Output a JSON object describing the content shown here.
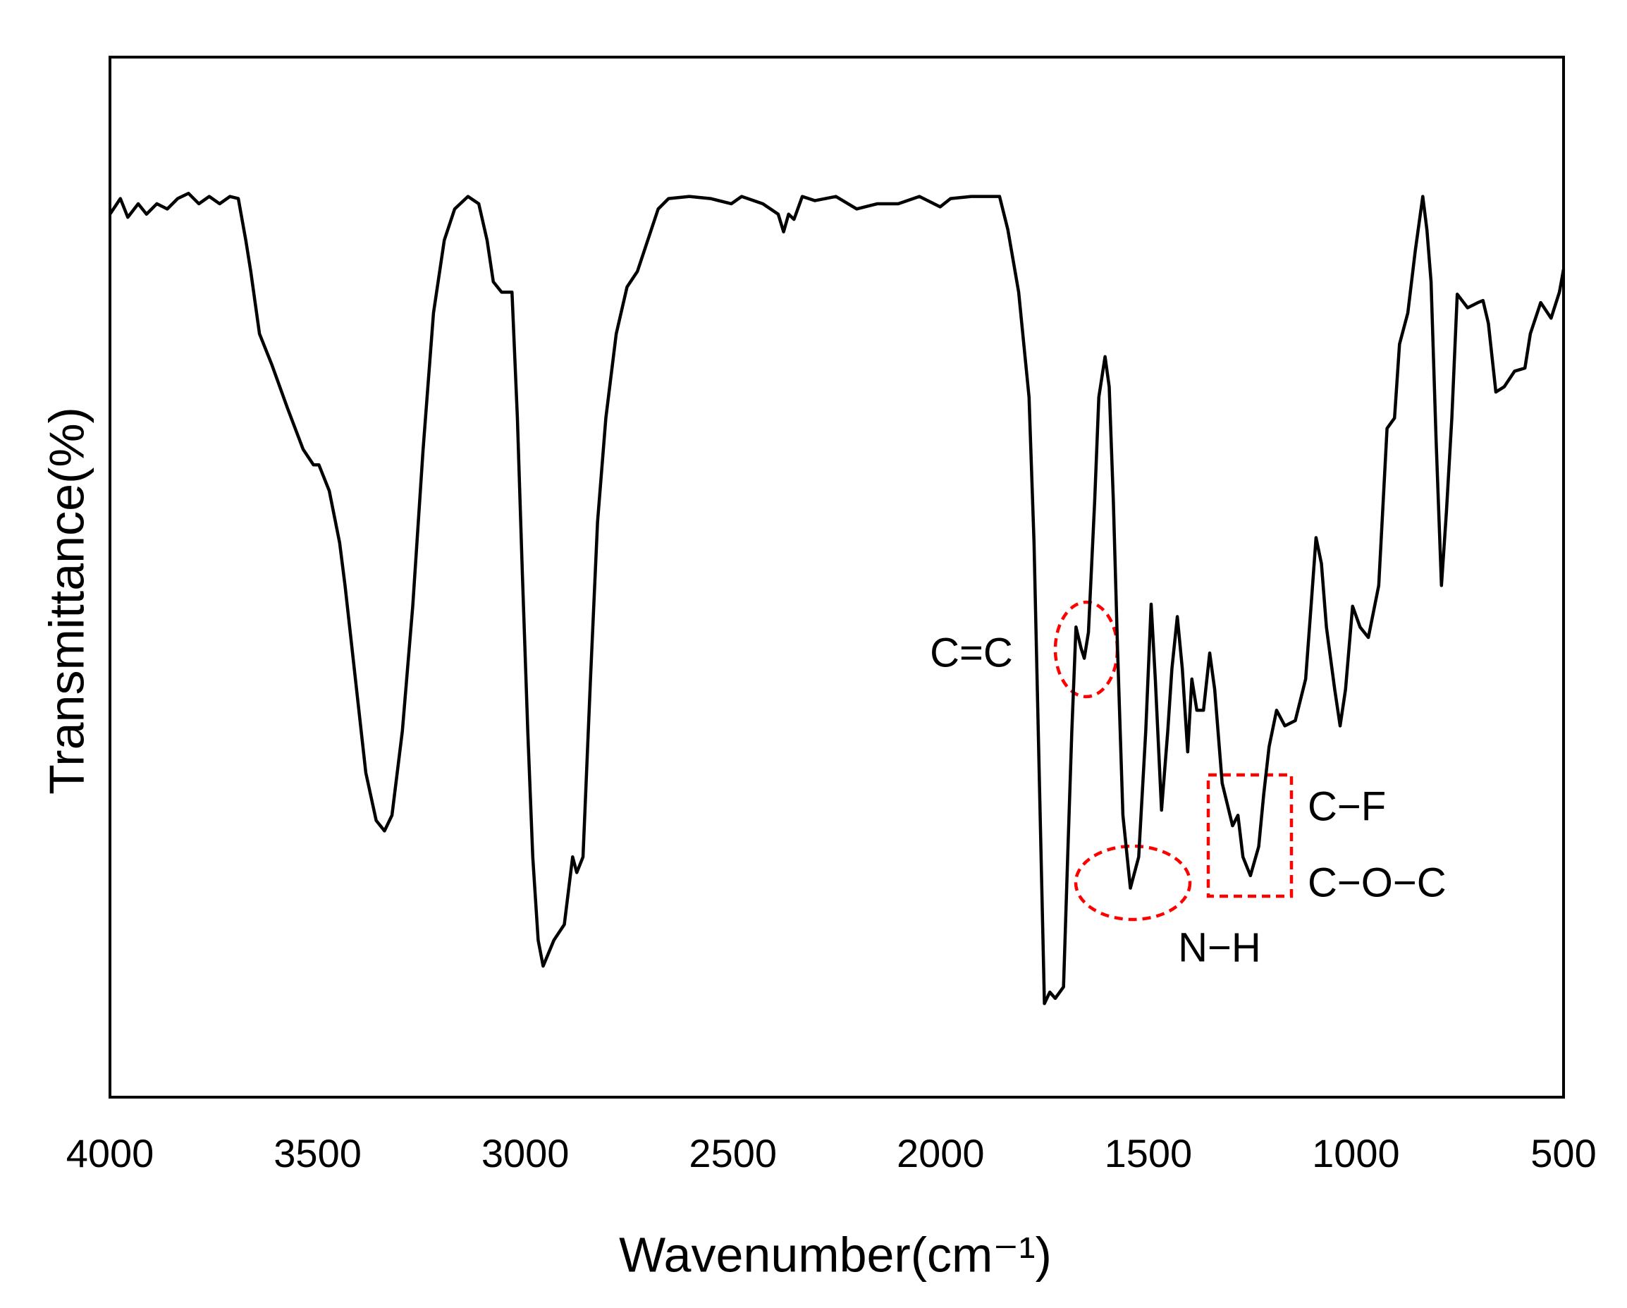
{
  "chart_data": {
    "type": "line",
    "x_label": "Wavenumber(cm⁻¹)",
    "y_label": "Transmittance(%)",
    "xlim": [
      4000,
      500
    ],
    "xticks": [
      4000,
      3500,
      3000,
      2500,
      2000,
      1500,
      1000,
      500
    ],
    "ylim": [
      0,
      100
    ],
    "color": "#000000",
    "x": [
      4000,
      3975,
      3957,
      3932,
      3912,
      3887,
      3862,
      3837,
      3811,
      3786,
      3761,
      3736,
      3711,
      3691,
      3673,
      3661,
      3640,
      3610,
      3573,
      3535,
      3510,
      3497,
      3472,
      3447,
      3434,
      3409,
      3384,
      3359,
      3339,
      3321,
      3296,
      3271,
      3246,
      3221,
      3195,
      3170,
      3138,
      3112,
      3092,
      3077,
      3057,
      3032,
      3019,
      3007,
      2994,
      2982,
      2969,
      2957,
      2931,
      2906,
      2886,
      2876,
      2861,
      2843,
      2826,
      2806,
      2781,
      2755,
      2730,
      2705,
      2680,
      2655,
      2605,
      2554,
      2504,
      2479,
      2428,
      2391,
      2378,
      2366,
      2353,
      2333,
      2303,
      2252,
      2202,
      2152,
      2102,
      2051,
      2001,
      1976,
      1926,
      1858,
      1838,
      1812,
      1787,
      1775,
      1762,
      1750,
      1737,
      1724,
      1704,
      1694,
      1684,
      1674,
      1662,
      1654,
      1644,
      1629,
      1619,
      1604,
      1594,
      1584,
      1574,
      1561,
      1543,
      1523,
      1506,
      1493,
      1483,
      1468,
      1453,
      1443,
      1430,
      1418,
      1405,
      1395,
      1383,
      1367,
      1352,
      1340,
      1322,
      1297,
      1284,
      1272,
      1254,
      1234,
      1222,
      1209,
      1191,
      1171,
      1146,
      1121,
      1108,
      1096,
      1083,
      1071,
      1051,
      1038,
      1025,
      1008,
      990,
      970,
      945,
      925,
      907,
      895,
      875,
      857,
      839,
      829,
      819,
      807,
      794,
      782,
      769,
      756,
      731,
      706,
      694,
      681,
      663,
      643,
      618,
      593,
      580,
      555,
      530,
      510,
      500
    ],
    "values": [
      84.9,
      86.4,
      84.6,
      85.9,
      84.9,
      85.9,
      85.4,
      86.4,
      86.9,
      85.9,
      86.6,
      85.9,
      86.6,
      86.4,
      82.4,
      79.4,
      73.4,
      70.4,
      66.3,
      62.3,
      60.8,
      60.8,
      58.3,
      53.3,
      49.2,
      40.2,
      31.2,
      26.6,
      25.6,
      27.1,
      35.2,
      47.2,
      62.3,
      75.4,
      82.4,
      85.4,
      86.6,
      85.9,
      82.4,
      78.4,
      77.4,
      77.4,
      65.3,
      50.3,
      35.2,
      23.1,
      15.1,
      12.6,
      15.1,
      16.6,
      23.1,
      21.6,
      23.1,
      40.2,
      55.3,
      65.3,
      73.4,
      77.9,
      79.4,
      82.4,
      85.4,
      86.4,
      86.6,
      86.4,
      85.9,
      86.6,
      85.9,
      84.9,
      83.2,
      84.9,
      84.4,
      86.6,
      86.2,
      86.6,
      85.4,
      85.9,
      85.9,
      86.6,
      85.6,
      86.4,
      86.6,
      86.6,
      83.4,
      77.4,
      67.3,
      53.3,
      30.2,
      9.0,
      10.1,
      9.5,
      10.6,
      23.1,
      35.2,
      45.2,
      43.2,
      42.2,
      44.7,
      57.3,
      67.3,
      71.2,
      68.3,
      57.3,
      43.2,
      27.1,
      20.1,
      23.1,
      35.2,
      47.4,
      40.2,
      27.6,
      35.2,
      41.2,
      46.2,
      41.2,
      33.2,
      40.2,
      37.2,
      37.2,
      42.7,
      39.2,
      30.2,
      26.1,
      27.1,
      23.1,
      21.3,
      24.1,
      29.1,
      33.7,
      37.2,
      35.7,
      36.2,
      40.2,
      47.2,
      53.8,
      51.3,
      45.2,
      39.2,
      35.7,
      39.2,
      47.2,
      45.2,
      44.2,
      49.2,
      64.3,
      65.3,
      72.4,
      75.4,
      81.4,
      86.6,
      83.4,
      78.4,
      63.3,
      49.2,
      56.3,
      65.3,
      77.2,
      75.9,
      76.4,
      76.6,
      74.4,
      67.8,
      68.3,
      69.8,
      70.1,
      73.4,
      76.4,
      74.9,
      77.4,
      79.6
    ],
    "annotations": [
      "C=C",
      "N−H",
      "C−F",
      "C−O−C"
    ]
  }
}
